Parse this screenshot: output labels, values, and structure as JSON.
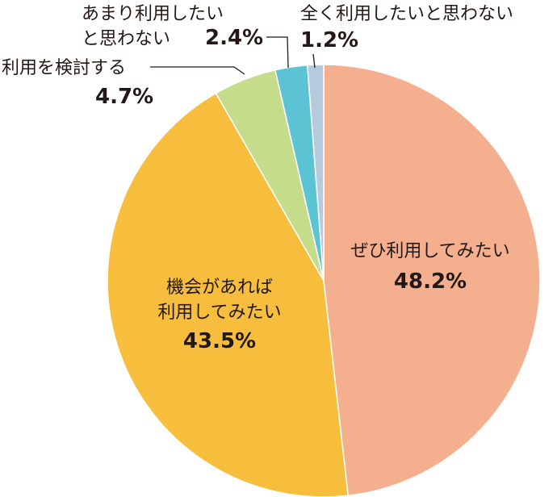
{
  "chart_data": {
    "type": "pie",
    "slices": [
      {
        "name": "ぜひ利用してみたい",
        "value": 48.2,
        "value_label": "48.2%",
        "color": "#f4b08e"
      },
      {
        "name": "機会があれば利用してみたい",
        "name_lines": [
          "機会があれば",
          "利用してみたい"
        ],
        "value": 43.5,
        "value_label": "43.5%",
        "color": "#f7bd3c"
      },
      {
        "name": "利用を検討する",
        "value": 4.7,
        "value_label": "4.7%",
        "color": "#c5dc8a"
      },
      {
        "name": "あまり利用したいと思わない",
        "name_lines": [
          "あまり利用したい",
          "と思わない"
        ],
        "value": 2.4,
        "value_label": "2.4%",
        "color": "#5bc3d3"
      },
      {
        "name": "全く利用したいと思わない",
        "value": 1.2,
        "value_label": "1.2%",
        "color": "#b5cbdb"
      }
    ],
    "start": "top",
    "direction": "clockwise",
    "title": "",
    "legend": "none"
  }
}
